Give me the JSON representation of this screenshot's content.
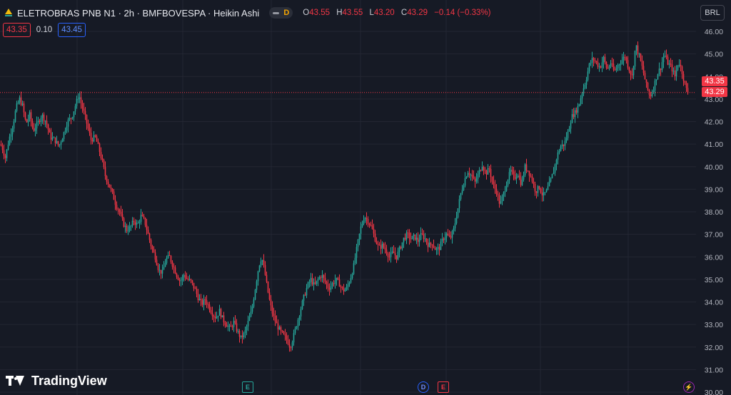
{
  "header": {
    "title": "ELETROBRAS PNB N1 · 2h · BMFBOVESPA · Heikin Ashi",
    "toggle_label": "D",
    "ohlc": [
      {
        "key": "O",
        "value": "43.55"
      },
      {
        "key": "H",
        "value": "43.55"
      },
      {
        "key": "L",
        "value": "43.20"
      },
      {
        "key": "C",
        "value": "43.29"
      }
    ],
    "change": "−0.14 (−0.33%)"
  },
  "quote": {
    "bid": "43.35",
    "spread": "0.10",
    "ask": "43.45"
  },
  "currency": "BRL",
  "price_tags": {
    "top": "43.35",
    "bottom": "43.29"
  },
  "brand": "TradingView",
  "events": [
    {
      "name": "earnings-marker-1",
      "label": "E"
    },
    {
      "name": "dividend-marker",
      "label": "D"
    },
    {
      "name": "earnings-marker-2",
      "label": "E"
    },
    {
      "name": "flash-marker",
      "label": "⚡"
    }
  ],
  "colors": {
    "up": "#26a69a",
    "down": "#f23645",
    "background": "#161a25",
    "grid": "#232632",
    "axis_text": "#b2b5be"
  },
  "chart_data": {
    "type": "candlestick",
    "style": "Heikin Ashi",
    "y_axis": {
      "position": "right",
      "ticks": [
        46.0,
        45.0,
        44.0,
        43.0,
        42.0,
        41.0,
        40.0,
        39.0,
        38.0,
        37.0,
        36.0,
        35.0,
        34.0,
        33.0,
        32.0,
        31.0,
        30.0
      ],
      "range": [
        30.0,
        46.2
      ]
    },
    "last_price": 43.29,
    "grid": true,
    "price_path": [
      [
        0,
        41.0
      ],
      [
        3,
        40.8
      ],
      [
        7,
        40.4
      ],
      [
        12,
        41.2
      ],
      [
        18,
        41.9
      ],
      [
        22,
        42.6
      ],
      [
        27,
        43.0
      ],
      [
        31,
        42.7
      ],
      [
        36,
        41.9
      ],
      [
        41,
        42.3
      ],
      [
        46,
        41.6
      ],
      [
        52,
        41.9
      ],
      [
        58,
        42.3
      ],
      [
        64,
        42.0
      ],
      [
        70,
        41.3
      ],
      [
        76,
        41.2
      ],
      [
        82,
        40.9
      ],
      [
        88,
        41.4
      ],
      [
        94,
        42.0
      ],
      [
        100,
        42.2
      ],
      [
        105,
        42.7
      ],
      [
        110,
        43.2
      ],
      [
        114,
        42.7
      ],
      [
        118,
        42.3
      ],
      [
        122,
        41.8
      ],
      [
        127,
        41.2
      ],
      [
        133,
        41.3
      ],
      [
        138,
        40.8
      ],
      [
        143,
        40.2
      ],
      [
        147,
        39.6
      ],
      [
        152,
        39.2
      ],
      [
        157,
        38.8
      ],
      [
        162,
        38.3
      ],
      [
        167,
        38.0
      ],
      [
        172,
        37.5
      ],
      [
        177,
        37.2
      ],
      [
        182,
        37.3
      ],
      [
        187,
        37.6
      ],
      [
        192,
        37.4
      ],
      [
        197,
        37.8
      ],
      [
        202,
        37.6
      ],
      [
        207,
        37.0
      ],
      [
        212,
        36.4
      ],
      [
        217,
        36.0
      ],
      [
        222,
        35.4
      ],
      [
        227,
        35.3
      ],
      [
        232,
        35.9
      ],
      [
        237,
        36.0
      ],
      [
        242,
        35.6
      ],
      [
        247,
        35.2
      ],
      [
        252,
        34.9
      ],
      [
        257,
        35.2
      ],
      [
        262,
        35.0
      ],
      [
        267,
        34.9
      ],
      [
        272,
        34.6
      ],
      [
        277,
        34.2
      ],
      [
        282,
        33.9
      ],
      [
        287,
        34.1
      ],
      [
        292,
        33.8
      ],
      [
        297,
        33.5
      ],
      [
        302,
        33.3
      ],
      [
        307,
        33.6
      ],
      [
        312,
        33.2
      ],
      [
        317,
        33.0
      ],
      [
        322,
        32.8
      ],
      [
        327,
        33.1
      ],
      [
        332,
        32.7
      ],
      [
        337,
        32.4
      ],
      [
        342,
        32.6
      ],
      [
        347,
        33.1
      ],
      [
        352,
        33.6
      ],
      [
        357,
        34.6
      ],
      [
        362,
        35.6
      ],
      [
        366,
        36.0
      ],
      [
        370,
        35.4
      ],
      [
        374,
        34.6
      ],
      [
        378,
        33.9
      ],
      [
        382,
        33.4
      ],
      [
        387,
        33.0
      ],
      [
        392,
        32.7
      ],
      [
        397,
        32.5
      ],
      [
        402,
        32.3
      ],
      [
        406,
        32.0
      ],
      [
        410,
        32.4
      ],
      [
        415,
        33.0
      ],
      [
        420,
        33.6
      ],
      [
        425,
        34.2
      ],
      [
        430,
        34.7
      ],
      [
        435,
        35.0
      ],
      [
        440,
        34.7
      ],
      [
        445,
        35.0
      ],
      [
        450,
        35.2
      ],
      [
        455,
        34.9
      ],
      [
        460,
        34.6
      ],
      [
        465,
        34.8
      ],
      [
        470,
        35.0
      ],
      [
        475,
        34.8
      ],
      [
        480,
        34.5
      ],
      [
        485,
        34.6
      ],
      [
        490,
        35.0
      ],
      [
        495,
        35.6
      ],
      [
        500,
        36.5
      ],
      [
        505,
        37.3
      ],
      [
        510,
        37.8
      ],
      [
        515,
        37.6
      ],
      [
        520,
        37.3
      ],
      [
        525,
        36.8
      ],
      [
        530,
        36.4
      ],
      [
        535,
        36.5
      ],
      [
        540,
        36.3
      ],
      [
        545,
        36.0
      ],
      [
        550,
        36.2
      ],
      [
        555,
        36.0
      ],
      [
        560,
        36.4
      ],
      [
        565,
        36.8
      ],
      [
        570,
        37.0
      ],
      [
        575,
        36.8
      ],
      [
        580,
        36.9
      ],
      [
        585,
        36.7
      ],
      [
        590,
        37.0
      ],
      [
        595,
        36.8
      ],
      [
        600,
        36.5
      ],
      [
        605,
        36.6
      ],
      [
        610,
        36.3
      ],
      [
        615,
        36.4
      ],
      [
        620,
        36.8
      ],
      [
        625,
        37.0
      ],
      [
        630,
        36.8
      ],
      [
        635,
        37.2
      ],
      [
        640,
        38.0
      ],
      [
        645,
        38.8
      ],
      [
        650,
        39.4
      ],
      [
        655,
        39.8
      ],
      [
        660,
        39.6
      ],
      [
        665,
        39.3
      ],
      [
        670,
        39.7
      ],
      [
        675,
        40.1
      ],
      [
        680,
        39.7
      ],
      [
        685,
        39.9
      ],
      [
        690,
        39.2
      ],
      [
        695,
        38.9
      ],
      [
        700,
        38.3
      ],
      [
        705,
        38.8
      ],
      [
        710,
        39.4
      ],
      [
        715,
        39.8
      ],
      [
        720,
        39.5
      ],
      [
        725,
        39.7
      ],
      [
        730,
        39.2
      ],
      [
        735,
        40.0
      ],
      [
        740,
        39.8
      ],
      [
        745,
        39.4
      ],
      [
        750,
        38.9
      ],
      [
        755,
        39.1
      ],
      [
        760,
        38.7
      ],
      [
        765,
        38.9
      ],
      [
        770,
        39.3
      ],
      [
        775,
        39.8
      ],
      [
        780,
        40.5
      ],
      [
        785,
        40.9
      ],
      [
        790,
        41.0
      ],
      [
        795,
        41.5
      ],
      [
        800,
        42.2
      ],
      [
        805,
        42.4
      ],
      [
        810,
        42.7
      ],
      [
        815,
        43.3
      ],
      [
        820,
        43.8
      ],
      [
        825,
        44.5
      ],
      [
        830,
        44.8
      ],
      [
        835,
        44.6
      ],
      [
        840,
        44.4
      ],
      [
        845,
        44.8
      ],
      [
        850,
        44.3
      ],
      [
        855,
        44.6
      ],
      [
        860,
        44.2
      ],
      [
        865,
        44.5
      ],
      [
        870,
        44.7
      ],
      [
        875,
        44.9
      ],
      [
        880,
        44.4
      ],
      [
        885,
        44.0
      ],
      [
        890,
        45.4
      ],
      [
        895,
        44.9
      ],
      [
        900,
        44.3
      ],
      [
        905,
        43.6
      ],
      [
        910,
        43.1
      ],
      [
        915,
        43.5
      ],
      [
        920,
        44.1
      ],
      [
        925,
        44.4
      ],
      [
        930,
        45.0
      ],
      [
        935,
        44.6
      ],
      [
        940,
        44.4
      ],
      [
        945,
        44.0
      ],
      [
        950,
        44.7
      ],
      [
        955,
        44.2
      ],
      [
        960,
        43.5
      ],
      [
        963,
        43.29
      ]
    ]
  }
}
